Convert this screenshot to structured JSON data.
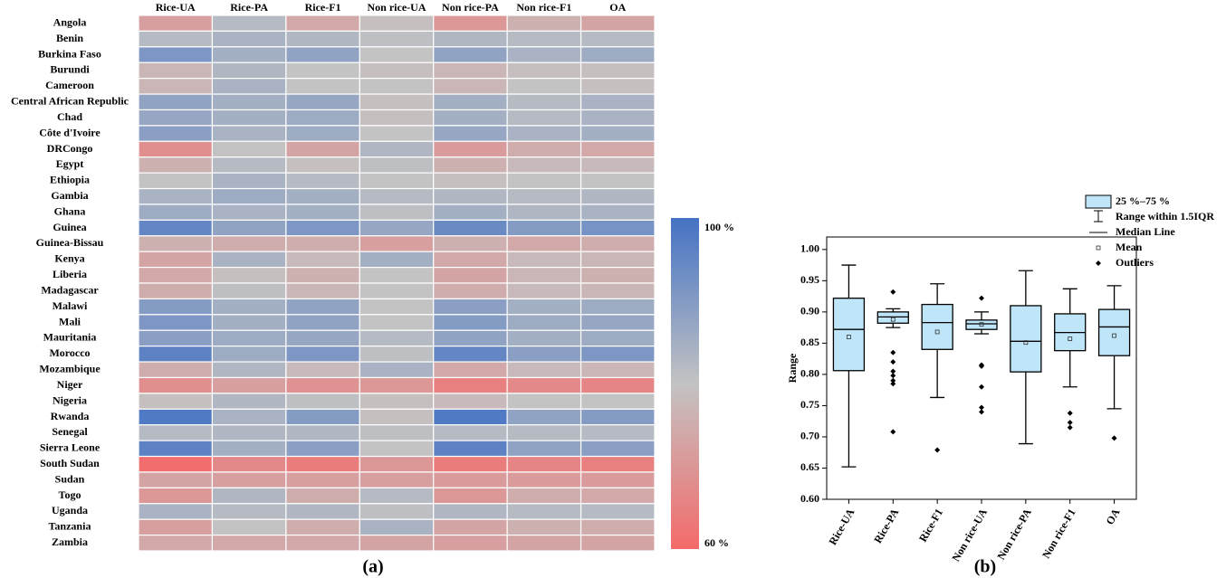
{
  "chart_data": [
    {
      "type": "heatmap",
      "caption": "(a)",
      "columns": [
        "Rice-UA",
        "Rice-PA",
        "Rice-F1",
        "Non rice-UA",
        "Non rice-PA",
        "Non rice-F1",
        "OA"
      ],
      "rows": [
        "Angola",
        "Benin",
        "Burkina Faso",
        "Burundi",
        "Cameroon",
        "Central African Republic",
        "Chad",
        "Côte d'Ivoire",
        "DRCongo",
        "Egypt",
        "Ethiopia",
        "Gambia",
        "Ghana",
        "Guinea",
        "Guinea-Bissau",
        "Kenya",
        "Liberia",
        "Madagascar",
        "Malawi",
        "Mali",
        "Mauritania",
        "Morocco",
        "Mozambique",
        "Niger",
        "Nigeria",
        "Rwanda",
        "Senegal",
        "Sierra Leone",
        "South Sudan",
        "Sudan",
        "Togo",
        "Uganda",
        "Tanzania",
        "Zambia"
      ],
      "values": [
        [
          72,
          82,
          74,
          79,
          70,
          76,
          73
        ],
        [
          82,
          84,
          83,
          81,
          83,
          82,
          82
        ],
        [
          91,
          85,
          88,
          80,
          88,
          84,
          86
        ],
        [
          77,
          83,
          80,
          79,
          77,
          79,
          79
        ],
        [
          77,
          84,
          80,
          80,
          77,
          80,
          79
        ],
        [
          88,
          85,
          87,
          79,
          85,
          82,
          84
        ],
        [
          87,
          85,
          86,
          79,
          85,
          82,
          84
        ],
        [
          89,
          84,
          86,
          80,
          87,
          84,
          85
        ],
        [
          68,
          80,
          73,
          83,
          71,
          75,
          74
        ],
        [
          76,
          82,
          79,
          81,
          76,
          78,
          78
        ],
        [
          80,
          84,
          82,
          80,
          79,
          80,
          80
        ],
        [
          84,
          86,
          85,
          82,
          83,
          82,
          83
        ],
        [
          86,
          84,
          85,
          81,
          85,
          83,
          84
        ],
        [
          95,
          88,
          91,
          87,
          94,
          90,
          92
        ],
        [
          76,
          75,
          75,
          72,
          76,
          74,
          75
        ],
        [
          73,
          84,
          78,
          85,
          74,
          78,
          77
        ],
        [
          74,
          79,
          76,
          80,
          73,
          77,
          76
        ],
        [
          75,
          81,
          77,
          80,
          75,
          78,
          77
        ],
        [
          90,
          85,
          88,
          80,
          89,
          85,
          86
        ],
        [
          91,
          85,
          88,
          80,
          90,
          86,
          87
        ],
        [
          89,
          86,
          87,
          82,
          88,
          85,
          86
        ],
        [
          96,
          86,
          91,
          81,
          95,
          89,
          91
        ],
        [
          75,
          83,
          78,
          84,
          74,
          78,
          77
        ],
        [
          68,
          72,
          69,
          70,
          65,
          67,
          66
        ],
        [
          79,
          83,
          81,
          79,
          78,
          80,
          80
        ],
        [
          98,
          84,
          90,
          79,
          98,
          88,
          90
        ],
        [
          82,
          83,
          83,
          81,
          82,
          82,
          82
        ],
        [
          96,
          85,
          89,
          80,
          96,
          88,
          89
        ],
        [
          61,
          67,
          64,
          70,
          64,
          66,
          65
        ],
        [
          73,
          72,
          72,
          72,
          71,
          71,
          71
        ],
        [
          70,
          83,
          75,
          82,
          70,
          75,
          74
        ],
        [
          84,
          82,
          83,
          81,
          83,
          82,
          82
        ],
        [
          72,
          80,
          75,
          84,
          73,
          76,
          75
        ],
        [
          74,
          74,
          74,
          73,
          72,
          73,
          73
        ]
      ],
      "colorlim": [
        60,
        100
      ],
      "colorticks": [
        {
          "value": 100,
          "label": "100 %"
        },
        {
          "value": 60,
          "label": "60 %"
        }
      ],
      "colormap": [
        "#f46a6a",
        "#c3c3c3",
        "#4472c4"
      ]
    },
    {
      "type": "box",
      "caption": "(b)",
      "y_label": "Range",
      "categories": [
        "Rice-UA",
        "Rice-PA",
        "Rice-F1",
        "Non rice-UA",
        "Non rice-PA",
        "Non rice-F1",
        "OA"
      ],
      "boxes": [
        {
          "min": 0.652,
          "q1": 0.806,
          "median": 0.872,
          "q3": 0.922,
          "max": 0.975,
          "mean": 0.86,
          "outliers": []
        },
        {
          "min": 0.875,
          "q1": 0.882,
          "median": 0.892,
          "q3": 0.9,
          "max": 0.905,
          "mean": 0.888,
          "outliers": [
            0.932,
            0.835,
            0.82,
            0.805,
            0.798,
            0.79,
            0.785,
            0.708
          ]
        },
        {
          "min": 0.763,
          "q1": 0.84,
          "median": 0.883,
          "q3": 0.912,
          "max": 0.945,
          "mean": 0.868,
          "outliers": [
            0.679
          ]
        },
        {
          "min": 0.865,
          "q1": 0.872,
          "median": 0.881,
          "q3": 0.887,
          "max": 0.9,
          "mean": 0.88,
          "outliers": [
            0.922,
            0.815,
            0.813,
            0.78,
            0.747,
            0.74
          ]
        },
        {
          "min": 0.689,
          "q1": 0.804,
          "median": 0.853,
          "q3": 0.91,
          "max": 0.966,
          "mean": 0.851,
          "outliers": []
        },
        {
          "min": 0.78,
          "q1": 0.838,
          "median": 0.867,
          "q3": 0.897,
          "max": 0.937,
          "mean": 0.857,
          "outliers": [
            0.738,
            0.723,
            0.715
          ]
        },
        {
          "min": 0.745,
          "q1": 0.83,
          "median": 0.876,
          "q3": 0.904,
          "max": 0.942,
          "mean": 0.862,
          "outliers": [
            0.698
          ]
        }
      ],
      "color": "#bfe6f8",
      "ylim": [
        0.6,
        1.02
      ],
      "yticks": [
        {
          "value": 0.6,
          "label": "0.60"
        },
        0.65,
        {
          "value": 0.7,
          "label": "0.70"
        },
        0.75,
        {
          "value": 0.8,
          "label": "0.80"
        },
        0.85,
        {
          "value": 0.9,
          "label": "0.90"
        },
        0.95,
        {
          "value": 1.0,
          "label": "1.00"
        }
      ],
      "legend": {
        "box": "25 %–75 %",
        "whisker": "Range within 1.5IQR",
        "median": "Median Line",
        "mean": "Mean",
        "outliers": "Outliers"
      }
    }
  ]
}
